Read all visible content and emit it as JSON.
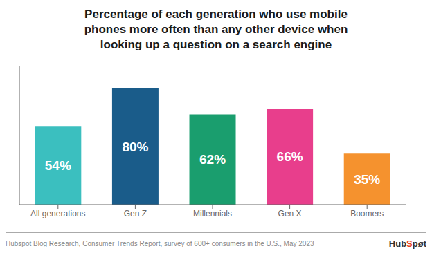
{
  "chart_data": {
    "type": "bar",
    "title": "Percentage of each generation who use mobile\nphones more often than any other device when\nlooking up a question on a search engine",
    "categories": [
      "All generations",
      "Gen Z",
      "Millennials",
      "Gen X",
      "Boomers"
    ],
    "values": [
      54,
      80,
      62,
      66,
      35
    ],
    "value_labels": [
      "54%",
      "80%",
      "62%",
      "66%",
      "35%"
    ],
    "colors": [
      "#3bbfbf",
      "#1a5c8a",
      "#1a9e6e",
      "#e83e8c",
      "#f5922e"
    ],
    "ylim": [
      0,
      95
    ],
    "data_labels": true,
    "tick_labels": "x",
    "grid": false,
    "annotations": [
      "Hubspot Blog Research, Consumer Trends Report, survey of 600+ consumers in the U.S., May 2023",
      "HubSpøt"
    ]
  }
}
